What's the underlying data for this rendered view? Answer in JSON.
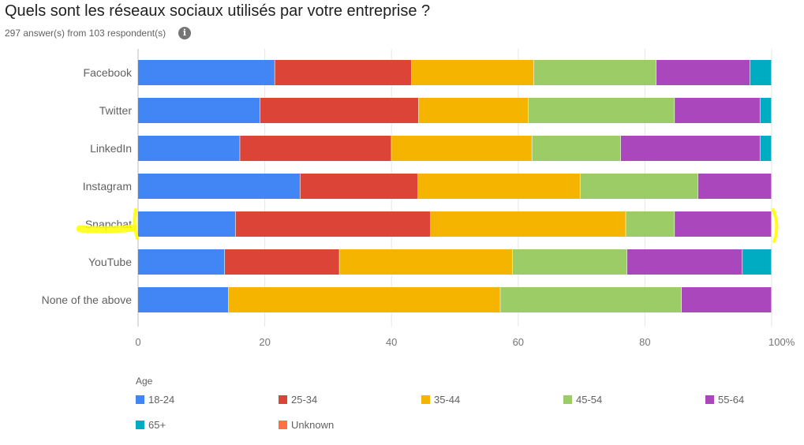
{
  "header": {
    "title": "Quels sont les réseaux sociaux utilisés par votre entreprise ?",
    "subtitle": "297 answer(s) from 103 respondent(s)",
    "info_icon": "info-icon",
    "info_glyph": "i"
  },
  "chart_data": {
    "type": "bar",
    "orientation": "horizontal",
    "stacked": "percent",
    "categories": [
      "Facebook",
      "Twitter",
      "LinkedIn",
      "Instagram",
      "Snapchat",
      "YouTube",
      "None of the above"
    ],
    "series": [
      {
        "name": "18-24",
        "color": "#4285F4",
        "values": [
          21.6,
          19.3,
          16.1,
          25.6,
          15.4,
          13.7,
          14.3
        ]
      },
      {
        "name": "25-34",
        "color": "#DB4437",
        "values": [
          21.6,
          25.0,
          23.9,
          18.6,
          30.8,
          18.1,
          0
        ]
      },
      {
        "name": "35-44",
        "color": "#F4B400",
        "values": [
          19.3,
          17.3,
          22.2,
          25.6,
          30.8,
          27.3,
          42.9
        ]
      },
      {
        "name": "45-54",
        "color": "#9CCC65",
        "values": [
          19.3,
          23.1,
          14.0,
          18.6,
          7.7,
          18.1,
          28.6
        ]
      },
      {
        "name": "55-64",
        "color": "#AB47BC",
        "values": [
          14.8,
          13.5,
          22.0,
          11.6,
          15.3,
          18.2,
          14.2
        ]
      },
      {
        "name": "65+",
        "color": "#00ACC1",
        "values": [
          3.4,
          1.8,
          1.8,
          0,
          0,
          4.6,
          0
        ]
      },
      {
        "name": "Unknown",
        "color": "#FF7043",
        "values": [
          0,
          0,
          0,
          0,
          0,
          0,
          0
        ]
      }
    ],
    "xticks": [
      "0",
      "20",
      "40",
      "60",
      "80",
      "100%"
    ],
    "xlim": [
      0,
      100
    ],
    "legend_title": "Age",
    "legend_position": "bottom",
    "grid": true,
    "highlighted_category": "Snapchat",
    "highlight_color": "#FFFF00"
  }
}
